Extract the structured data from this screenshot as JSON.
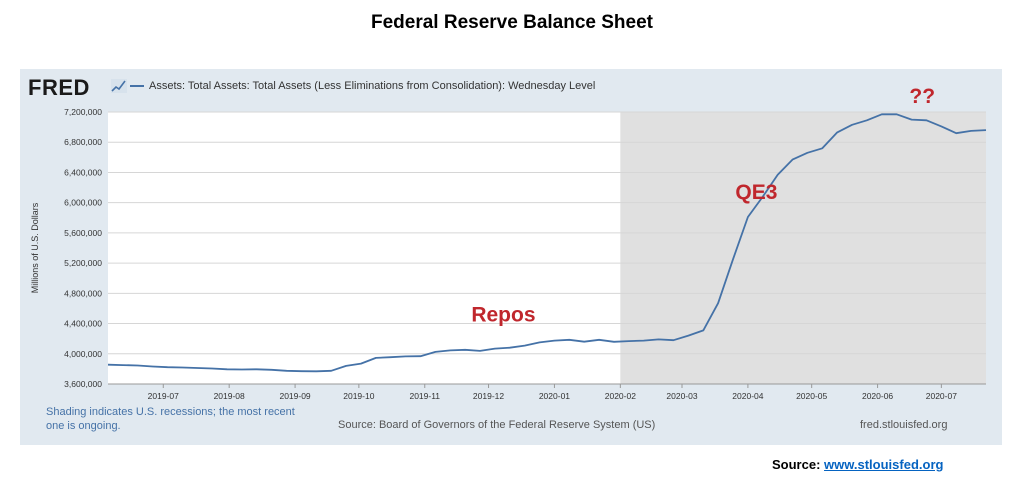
{
  "page_title": "Federal Reserve Balance Sheet",
  "logo_text": "FRED",
  "logo_mark_icon": "fred-trend-line-icon",
  "footer": {
    "recession_note": "Shading indicates U.S. recessions; the most recent one is ongoing.",
    "source": "Source: Board of Governors of the Federal Reserve System (US)",
    "url": "fred.stlouisfed.org"
  },
  "page_source": {
    "label": "Source:",
    "link": "www.stlouisfed.org"
  },
  "colors": {
    "line": "#4572a7",
    "panel_bg": "#e1e9f0",
    "recession_shade": "#e0e0e0",
    "annotation": "#c0272d"
  },
  "chart_data": {
    "type": "line",
    "title": "",
    "ylabel": "Millions of U.S. Dollars",
    "xlabel": "",
    "ylim": [
      3600000,
      7200000
    ],
    "xlim": [
      "2019-06-05",
      "2020-07-22"
    ],
    "y_ticks": [
      3600000,
      4000000,
      4400000,
      4800000,
      5200000,
      5600000,
      6000000,
      6400000,
      6800000,
      7200000
    ],
    "y_tick_labels": [
      "3,600,000",
      "4,000,000",
      "4,400,000",
      "4,800,000",
      "5,200,000",
      "5,600,000",
      "6,000,000",
      "6,400,000",
      "6,800,000",
      "7,200,000"
    ],
    "x_ticks": [
      "2019-07-01",
      "2019-08-01",
      "2019-09-01",
      "2019-10-01",
      "2019-11-01",
      "2019-12-01",
      "2020-01-01",
      "2020-02-01",
      "2020-03-01",
      "2020-04-01",
      "2020-05-01",
      "2020-06-01",
      "2020-07-01"
    ],
    "x_tick_labels": [
      "2019-07",
      "2019-08",
      "2019-09",
      "2019-10",
      "2019-11",
      "2019-12",
      "2020-01",
      "2020-02",
      "2020-03",
      "2020-04",
      "2020-05",
      "2020-06",
      "2020-07"
    ],
    "grid": true,
    "recession_shading": {
      "start": "2020-02-01",
      "end": "2020-07-22"
    },
    "series": [
      {
        "name": "Assets: Total Assets: Total Assets (Less Eliminations from Consolidation): Wednesday Level",
        "x": [
          "2019-06-05",
          "2019-06-12",
          "2019-06-19",
          "2019-06-26",
          "2019-07-03",
          "2019-07-10",
          "2019-07-17",
          "2019-07-24",
          "2019-07-31",
          "2019-08-07",
          "2019-08-14",
          "2019-08-21",
          "2019-08-28",
          "2019-09-04",
          "2019-09-11",
          "2019-09-18",
          "2019-09-25",
          "2019-10-02",
          "2019-10-09",
          "2019-10-16",
          "2019-10-23",
          "2019-10-30",
          "2019-11-06",
          "2019-11-13",
          "2019-11-20",
          "2019-11-27",
          "2019-12-04",
          "2019-12-11",
          "2019-12-18",
          "2019-12-25",
          "2020-01-01",
          "2020-01-08",
          "2020-01-15",
          "2020-01-22",
          "2020-01-29",
          "2020-02-05",
          "2020-02-12",
          "2020-02-19",
          "2020-02-26",
          "2020-03-04",
          "2020-03-11",
          "2020-03-18",
          "2020-03-25",
          "2020-04-01",
          "2020-04-08",
          "2020-04-15",
          "2020-04-22",
          "2020-04-29",
          "2020-05-06",
          "2020-05-13",
          "2020-05-20",
          "2020-05-27",
          "2020-06-03",
          "2020-06-10",
          "2020-06-17",
          "2020-06-24",
          "2020-07-01",
          "2020-07-08",
          "2020-07-15",
          "2020-07-22"
        ],
        "values": [
          3855000,
          3850000,
          3845000,
          3832000,
          3822000,
          3818000,
          3812000,
          3805000,
          3795000,
          3792000,
          3795000,
          3788000,
          3775000,
          3770000,
          3768000,
          3775000,
          3840000,
          3870000,
          3945000,
          3955000,
          3965000,
          3968000,
          4025000,
          4045000,
          4052000,
          4038000,
          4068000,
          4080000,
          4108000,
          4150000,
          4175000,
          4185000,
          4160000,
          4185000,
          4158000,
          4168000,
          4175000,
          4190000,
          4180000,
          4240000,
          4310000,
          4670000,
          5250000,
          5810000,
          6080000,
          6370000,
          6570000,
          6660000,
          6720000,
          6930000,
          7030000,
          7090000,
          7170000,
          7170000,
          7100000,
          7090000,
          7010000,
          6920000,
          6950000,
          6960000
        ]
      }
    ],
    "annotations": [
      {
        "text": "Repos",
        "x": "2019-12-08",
        "y": 4430000
      },
      {
        "text": "QE3",
        "x": "2020-04-05",
        "y": 6050000
      },
      {
        "text": "??",
        "x": "2020-06-22",
        "y": 7320000
      }
    ]
  }
}
